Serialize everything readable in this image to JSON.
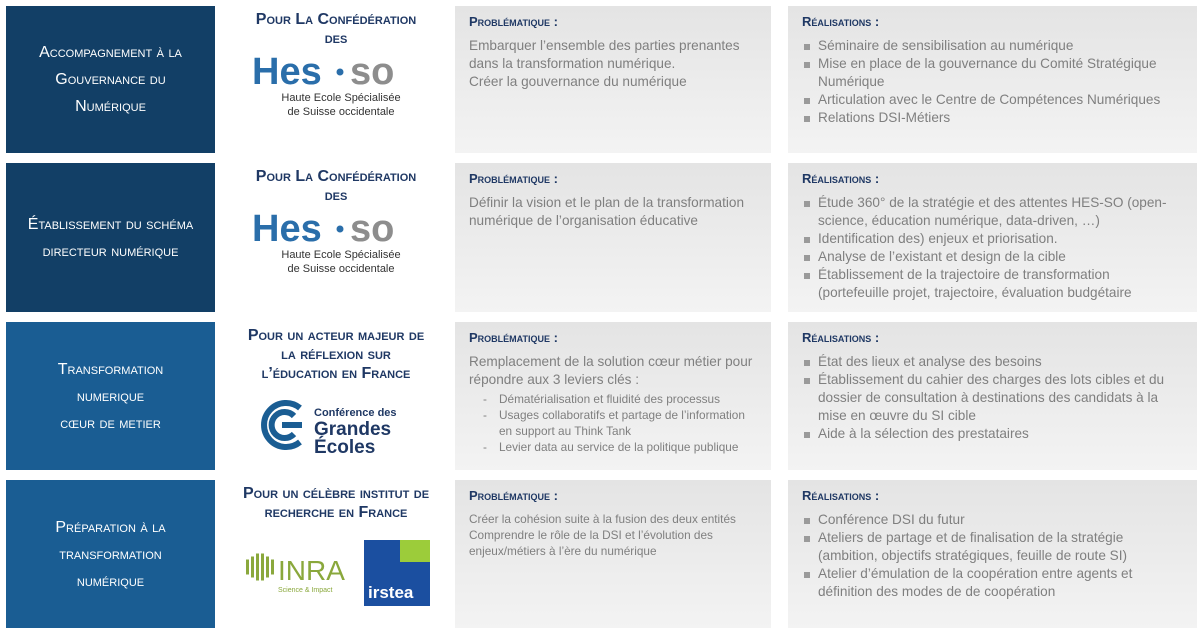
{
  "rows": [
    {
      "title_lines": [
        "Accompagnement  à la",
        "Gouvernance du",
        "Numérique"
      ],
      "client_lines": [
        "Pour La Confédération",
        "des"
      ],
      "logo_hesso": {
        "main": [
          "Hes",
          "so"
        ],
        "sub": [
          "Haute Ecole Spécialisée",
          "de Suisse occidentale"
        ]
      },
      "problem_label": "Problématique :",
      "problem_paragraphs": [
        "Embarquer l’ensemble des parties prenantes dans la transformation numérique.",
        "Créer la gouvernance du numérique"
      ],
      "achievements_label": "Réalisations :",
      "achievements": [
        "Séminaire de sensibilisation au numérique",
        "Mise en place de la gouvernance du Comité Stratégique Numérique",
        "Articulation avec le Centre de Compétences Numériques",
        "Relations DSI-Métiers"
      ]
    },
    {
      "title_lines": [
        "Établissement du schéma",
        "directeur numérique"
      ],
      "client_lines": [
        "Pour La Confédération",
        "des"
      ],
      "logo_hesso": {
        "main": [
          "Hes",
          "so"
        ],
        "sub": [
          "Haute Ecole Spécialisée",
          "de Suisse occidentale"
        ]
      },
      "problem_label": "Problématique :",
      "problem_paragraphs": [
        "Définir la vision et le plan de la transformation numérique de l’organisation éducative"
      ],
      "achievements_label": "Réalisations :",
      "achievements": [
        "Étude 360° de la stratégie et des attentes HES-SO (open-science, éducation numérique, data-driven, …)",
        "Identification des) enjeux et priorisation.",
        "Analyse de l’existant et design de la cible",
        "Établissement de la trajectoire de transformation (portefeuille projet, trajectoire, évaluation budgétaire"
      ]
    },
    {
      "title_lines": [
        "Transformation",
        "numerique",
        "cœur de metier"
      ],
      "client_lines": [
        "Pour un acteur majeur de",
        "la réflexion sur",
        "l’éducation en France"
      ],
      "logo_cge": [
        "Conférence des",
        "Grandes",
        "Écoles"
      ],
      "problem_label": "Problématique :",
      "problem_paragraphs": [
        "Remplacement de la solution cœur métier pour répondre aux 3 leviers clés :"
      ],
      "problem_items": [
        "Dématérialisation et fluidité des processus",
        "Usages collaboratifs et partage de l’information  en support au Think Tank",
        "Levier data au service de la politique publique"
      ],
      "achievements_label": "Réalisations :",
      "achievements": [
        "État des lieux et analyse des besoins",
        "Établissement du cahier des charges des lots cibles et du dossier de consultation à destinations des candidats à la mise en œuvre du SI cible",
        "Aide à la sélection des prestataires"
      ]
    },
    {
      "title_lines": [
        "Préparation à la",
        "transformation",
        "numérique"
      ],
      "client_lines": [
        "Pour un célèbre institut de",
        "recherche en France"
      ],
      "logo_inra": [
        "INRA",
        "Science & Impact"
      ],
      "logo_irstea": "irstea",
      "problem_label": "Problématique :",
      "problem_paragraphs": [
        "Créer la cohésion suite à la fusion des deux entités",
        "Comprendre le rôle de la DSI et l’évolution des enjeux/métiers à l’ère du numérique"
      ],
      "achievements_label": "Réalisations :",
      "achievements": [
        "Conférence DSI du futur",
        "Ateliers de partage et de finalisation de la stratégie (ambition, objectifs stratégiques, feuille de route SI)",
        "Atelier d’émulation de la coopération entre agents et définition des modes de de coopération"
      ]
    }
  ]
}
